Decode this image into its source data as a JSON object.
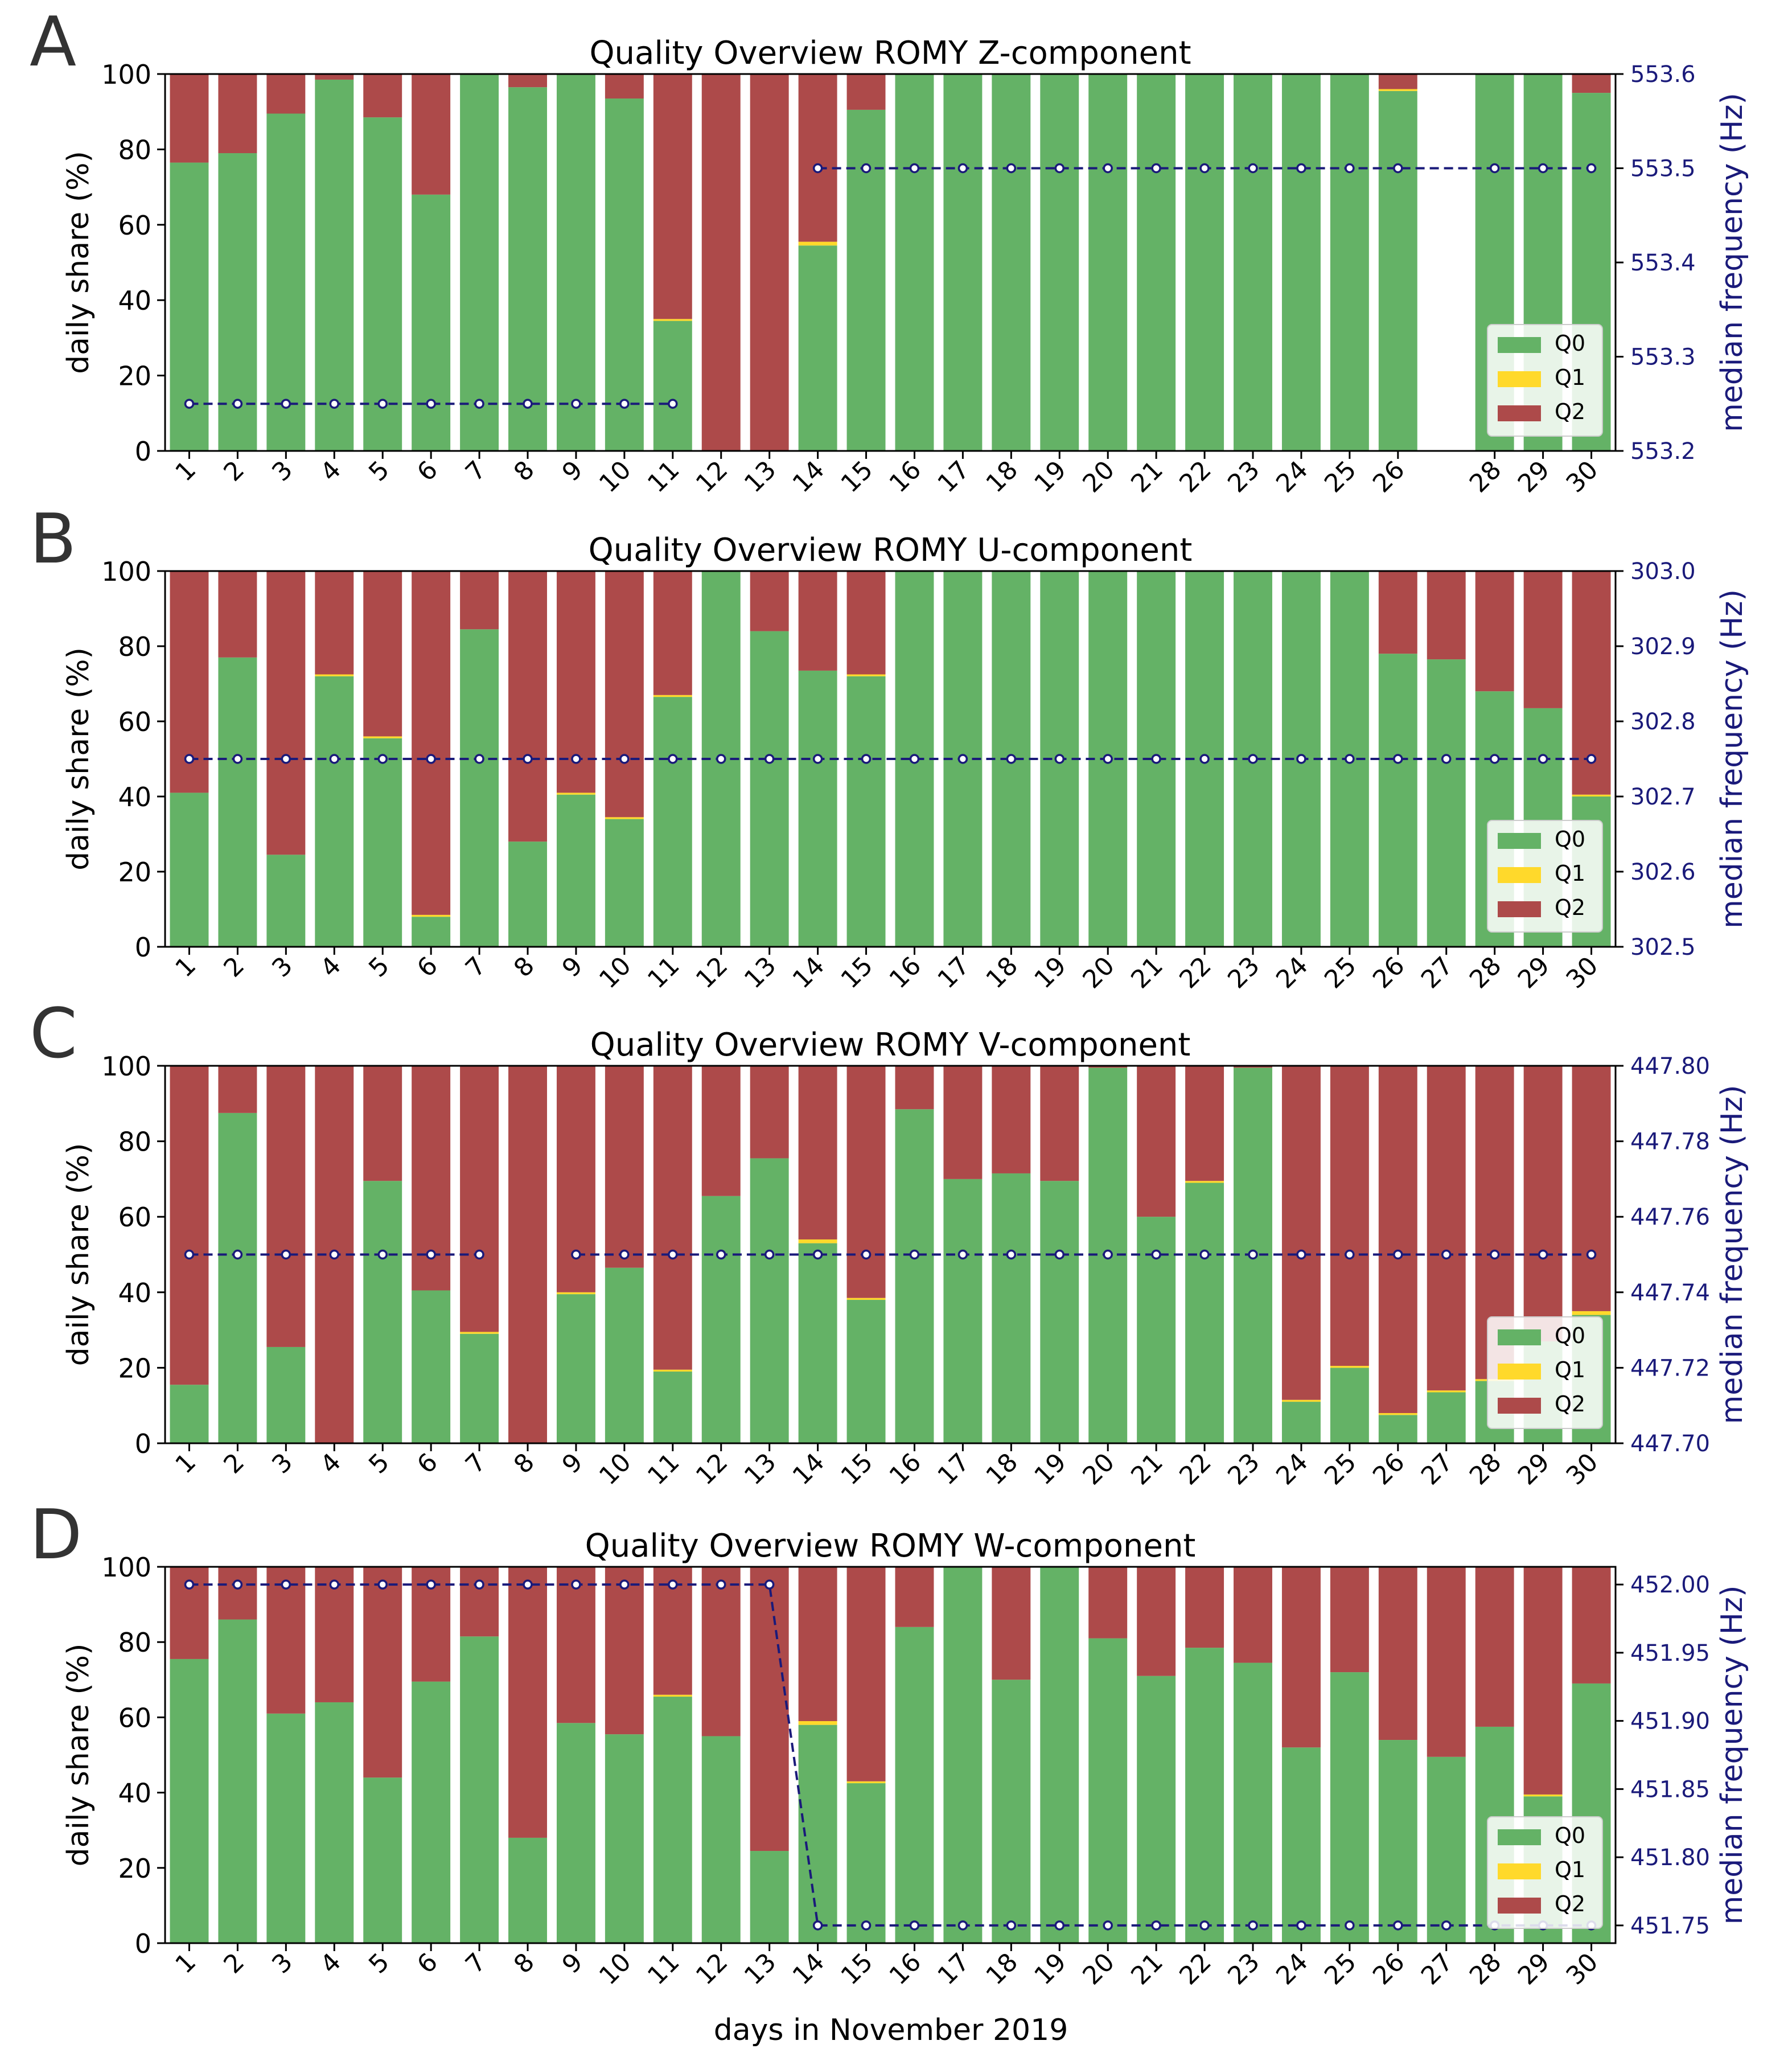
{
  "figure": {
    "xlabel": "days in November 2019",
    "panel_labels": [
      "A",
      "B",
      "C",
      "D"
    ]
  },
  "colors": {
    "q0": "#64b266",
    "q1": "#ffd92b",
    "q2": "#ad4a4a",
    "frequency_line": "#1a1a7a",
    "axis": "#000000"
  },
  "chart_data": [
    {
      "type": "bar",
      "stacked": true,
      "panel": "A",
      "title": "Quality Overview ROMY Z-component",
      "ylabel": "daily share (%)",
      "ylim": [
        0,
        100
      ],
      "yticks": [
        0,
        20,
        40,
        60,
        80,
        100
      ],
      "y2label": "median frequency (Hz)",
      "y2lim": [
        553.2,
        553.6
      ],
      "y2ticks": [
        "553.2",
        "553.3",
        "553.4",
        "553.5",
        "553.6"
      ],
      "categories": [
        "1",
        "2",
        "3",
        "4",
        "5",
        "6",
        "7",
        "8",
        "9",
        "10",
        "11",
        "12",
        "13",
        "14",
        "15",
        "16",
        "17",
        "18",
        "19",
        "20",
        "21",
        "22",
        "23",
        "24",
        "25",
        "26",
        "28",
        "29",
        "30"
      ],
      "legend": [
        "Q0",
        "Q1",
        "Q2"
      ],
      "legend_position": "lower-right",
      "series": [
        {
          "name": "Q0",
          "values": [
            76.5,
            79,
            89.5,
            98.5,
            88.5,
            68,
            100,
            96.5,
            100,
            93.5,
            34.5,
            0,
            0,
            54.5,
            90.5,
            100,
            100,
            100,
            100,
            100,
            100,
            100,
            100,
            100,
            100,
            95.5,
            100,
            100,
            95
          ]
        },
        {
          "name": "Q1",
          "values": [
            0,
            0,
            0,
            0,
            0,
            0,
            0,
            0,
            0,
            0,
            0.5,
            0,
            0,
            1,
            0,
            0,
            0,
            0,
            0,
            0,
            0,
            0,
            0,
            0,
            0,
            0.5,
            0,
            0,
            0
          ]
        },
        {
          "name": "Q2",
          "values": [
            23.5,
            21,
            10.5,
            1.5,
            11.5,
            32,
            0,
            3.5,
            0,
            6.5,
            65,
            100,
            100,
            44.5,
            9.5,
            0,
            0,
            0,
            0,
            0,
            0,
            0,
            0,
            0,
            0,
            4,
            0,
            0,
            5
          ]
        }
      ],
      "median_frequency": [
        553.25,
        553.25,
        553.25,
        553.25,
        553.25,
        553.25,
        553.25,
        553.25,
        553.25,
        553.25,
        553.25,
        null,
        null,
        553.5,
        553.5,
        553.5,
        553.5,
        553.5,
        553.5,
        553.5,
        553.5,
        553.5,
        553.5,
        553.5,
        553.5,
        553.5,
        553.5,
        553.5,
        553.5
      ]
    },
    {
      "type": "bar",
      "stacked": true,
      "panel": "B",
      "title": "Quality Overview ROMY U-component",
      "ylabel": "daily share (%)",
      "ylim": [
        0,
        100
      ],
      "yticks": [
        0,
        20,
        40,
        60,
        80,
        100
      ],
      "y2label": "median frequency (Hz)",
      "y2lim": [
        302.5,
        303.0
      ],
      "y2ticks": [
        "302.5",
        "302.6",
        "302.7",
        "302.8",
        "302.9",
        "303.0"
      ],
      "categories": [
        "1",
        "2",
        "3",
        "4",
        "5",
        "6",
        "7",
        "8",
        "9",
        "10",
        "11",
        "12",
        "13",
        "14",
        "15",
        "16",
        "17",
        "18",
        "19",
        "20",
        "21",
        "22",
        "23",
        "24",
        "25",
        "26",
        "27",
        "28",
        "29",
        "30"
      ],
      "legend": [
        "Q0",
        "Q1",
        "Q2"
      ],
      "legend_position": "lower-right",
      "series": [
        {
          "name": "Q0",
          "values": [
            41,
            77,
            24.5,
            72,
            55.5,
            8,
            84.5,
            28,
            40.5,
            34,
            66.5,
            100,
            84,
            73.5,
            72,
            100,
            100,
            100,
            100,
            100,
            100,
            100,
            100,
            100,
            100,
            78,
            76.5,
            68,
            63.5,
            40
          ]
        },
        {
          "name": "Q1",
          "values": [
            0,
            0,
            0,
            0.5,
            0.5,
            0.5,
            0,
            0,
            0.5,
            0.5,
            0.5,
            0,
            0,
            0,
            0.5,
            0,
            0,
            0,
            0,
            0,
            0,
            0,
            0,
            0,
            0,
            0,
            0,
            0,
            0,
            0.5
          ]
        },
        {
          "name": "Q2",
          "values": [
            59,
            23,
            75.5,
            27.5,
            44,
            91.5,
            15.5,
            72,
            59,
            65.5,
            33,
            0,
            16,
            26.5,
            27.5,
            0,
            0,
            0,
            0,
            0,
            0,
            0,
            0,
            0,
            0,
            22,
            23.5,
            32,
            36.5,
            59.5
          ]
        }
      ],
      "median_frequency": [
        302.75,
        302.75,
        302.75,
        302.75,
        302.75,
        302.75,
        302.75,
        302.75,
        302.75,
        302.75,
        302.75,
        302.75,
        302.75,
        302.75,
        302.75,
        302.75,
        302.75,
        302.75,
        302.75,
        302.75,
        302.75,
        302.75,
        302.75,
        302.75,
        302.75,
        302.75,
        302.75,
        302.75,
        302.75,
        302.75
      ]
    },
    {
      "type": "bar",
      "stacked": true,
      "panel": "C",
      "title": "Quality Overview ROMY V-component",
      "ylabel": "daily share (%)",
      "ylim": [
        0,
        100
      ],
      "yticks": [
        0,
        20,
        40,
        60,
        80,
        100
      ],
      "y2label": "median frequency (Hz)",
      "y2lim": [
        447.7,
        447.8
      ],
      "y2ticks": [
        "447.70",
        "447.72",
        "447.74",
        "447.76",
        "447.78",
        "447.80"
      ],
      "categories": [
        "1",
        "2",
        "3",
        "4",
        "5",
        "6",
        "7",
        "8",
        "9",
        "10",
        "11",
        "12",
        "13",
        "14",
        "15",
        "16",
        "17",
        "18",
        "19",
        "20",
        "21",
        "22",
        "23",
        "24",
        "25",
        "26",
        "27",
        "28",
        "29",
        "30"
      ],
      "legend": [
        "Q0",
        "Q1",
        "Q2"
      ],
      "legend_position": "lower-right",
      "series": [
        {
          "name": "Q0",
          "values": [
            15.5,
            87.5,
            25.5,
            0,
            69.5,
            40.5,
            29,
            0,
            39.5,
            46.5,
            19,
            65.5,
            75.5,
            53,
            38,
            88.5,
            70,
            71.5,
            69.5,
            99.5,
            60,
            69,
            99.5,
            11,
            20,
            7.5,
            13.5,
            16.5,
            27,
            34
          ]
        },
        {
          "name": "Q1",
          "values": [
            0,
            0,
            0,
            0,
            0,
            0,
            0.5,
            0,
            0.5,
            0,
            0.5,
            0,
            0,
            1,
            0.5,
            0,
            0,
            0,
            0,
            0,
            0,
            0.5,
            0,
            0.5,
            0.5,
            0.5,
            0.5,
            0.5,
            0,
            1
          ]
        },
        {
          "name": "Q2",
          "values": [
            84.5,
            12.5,
            74.5,
            100,
            30.5,
            59.5,
            70.5,
            100,
            60,
            53.5,
            80.5,
            34.5,
            24.5,
            46,
            61.5,
            11.5,
            30,
            28.5,
            30.5,
            0.5,
            40,
            30.5,
            0.5,
            88.5,
            79.5,
            92,
            86,
            83,
            73,
            65
          ]
        }
      ],
      "median_frequency": [
        447.75,
        447.75,
        447.75,
        447.75,
        447.75,
        447.75,
        447.75,
        null,
        447.75,
        447.75,
        447.75,
        447.75,
        447.75,
        447.75,
        447.75,
        447.75,
        447.75,
        447.75,
        447.75,
        447.75,
        447.75,
        447.75,
        447.75,
        447.75,
        447.75,
        447.75,
        447.75,
        447.75,
        447.75,
        447.75
      ]
    },
    {
      "type": "bar",
      "stacked": true,
      "panel": "D",
      "title": "Quality Overview ROMY W-component",
      "ylabel": "daily share (%)",
      "ylim": [
        0,
        100
      ],
      "yticks": [
        0,
        20,
        40,
        60,
        80,
        100
      ],
      "y2label": "median frequency (Hz)",
      "y2lim": [
        451.737,
        452.013
      ],
      "y2ticks": [
        "451.75",
        "451.80",
        "451.85",
        "451.90",
        "451.95",
        "452.00"
      ],
      "categories": [
        "1",
        "2",
        "3",
        "4",
        "5",
        "6",
        "7",
        "8",
        "9",
        "10",
        "11",
        "12",
        "13",
        "14",
        "15",
        "16",
        "17",
        "18",
        "19",
        "20",
        "21",
        "22",
        "23",
        "24",
        "25",
        "26",
        "27",
        "28",
        "29",
        "30"
      ],
      "legend": [
        "Q0",
        "Q1",
        "Q2"
      ],
      "legend_position": "lower-right",
      "series": [
        {
          "name": "Q0",
          "values": [
            75.5,
            86,
            61,
            64,
            44,
            69.5,
            81.5,
            28,
            58.5,
            55.5,
            65.5,
            55,
            24.5,
            58,
            42.5,
            84,
            100,
            70,
            100,
            81,
            71,
            78.5,
            74.5,
            52,
            72,
            54,
            49.5,
            57.5,
            39,
            69
          ]
        },
        {
          "name": "Q1",
          "values": [
            0,
            0,
            0,
            0,
            0,
            0,
            0,
            0,
            0,
            0,
            0.5,
            0,
            0,
            1,
            0.5,
            0,
            0,
            0,
            0,
            0,
            0,
            0,
            0,
            0,
            0,
            0,
            0,
            0,
            0.5,
            0
          ]
        },
        {
          "name": "Q2",
          "values": [
            24.5,
            14,
            39,
            36,
            56,
            30.5,
            18.5,
            72,
            41.5,
            44.5,
            34,
            45,
            75.5,
            41,
            57,
            16,
            0,
            30,
            0,
            19,
            29,
            21.5,
            25.5,
            48,
            28,
            46,
            50.5,
            42.5,
            60.5,
            31
          ]
        }
      ],
      "median_frequency": [
        452.0,
        452.0,
        452.0,
        452.0,
        452.0,
        452.0,
        452.0,
        452.0,
        452.0,
        452.0,
        452.0,
        452.0,
        452.0,
        451.75,
        451.75,
        451.75,
        451.75,
        451.75,
        451.75,
        451.75,
        451.75,
        451.75,
        451.75,
        451.75,
        451.75,
        451.75,
        451.75,
        451.75,
        451.75,
        451.75
      ]
    }
  ]
}
